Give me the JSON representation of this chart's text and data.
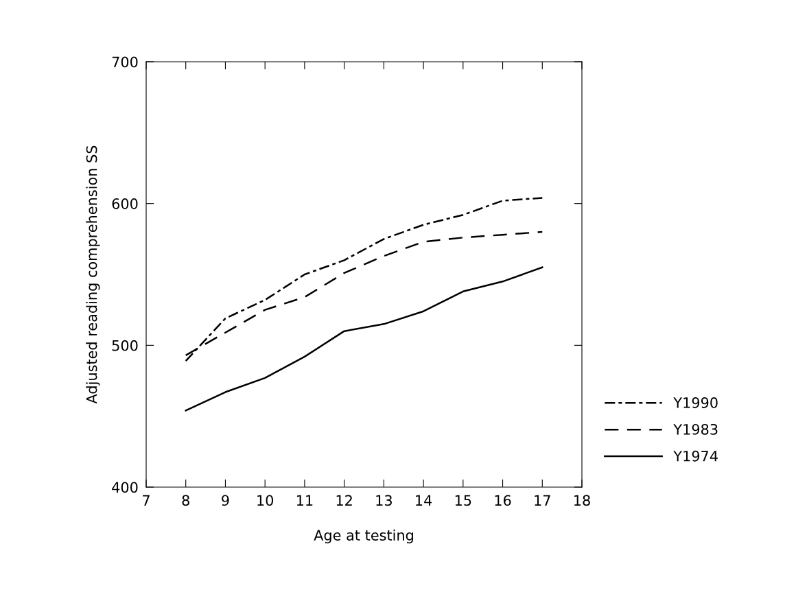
{
  "chart_data": {
    "type": "line",
    "xlabel": "Age at testing",
    "ylabel": "Adjusted reading comprehension SS",
    "x": [
      8,
      9,
      10,
      11,
      12,
      13,
      14,
      15,
      16,
      17
    ],
    "series": [
      {
        "name": "Y1990",
        "color": "#000000",
        "line_style": "dashdot",
        "values": [
          489,
          519,
          532,
          550,
          560,
          575,
          585,
          592,
          602,
          604
        ]
      },
      {
        "name": "Y1983",
        "color": "#000000",
        "line_style": "dashed",
        "values": [
          493,
          509,
          525,
          534,
          551,
          563,
          573,
          576,
          578,
          580
        ]
      },
      {
        "name": "Y1974",
        "color": "#000000",
        "line_style": "solid",
        "values": [
          454,
          467,
          477,
          492,
          510,
          515,
          524,
          538,
          545,
          555
        ]
      }
    ],
    "xlim": [
      7,
      18
    ],
    "xticks": [
      7,
      8,
      9,
      10,
      11,
      12,
      13,
      14,
      15,
      16,
      17,
      18
    ],
    "ylim": [
      400,
      700
    ],
    "yticks": [
      400,
      500,
      600,
      700
    ],
    "grid": false,
    "legend": "bottom right",
    "marker": "none"
  }
}
